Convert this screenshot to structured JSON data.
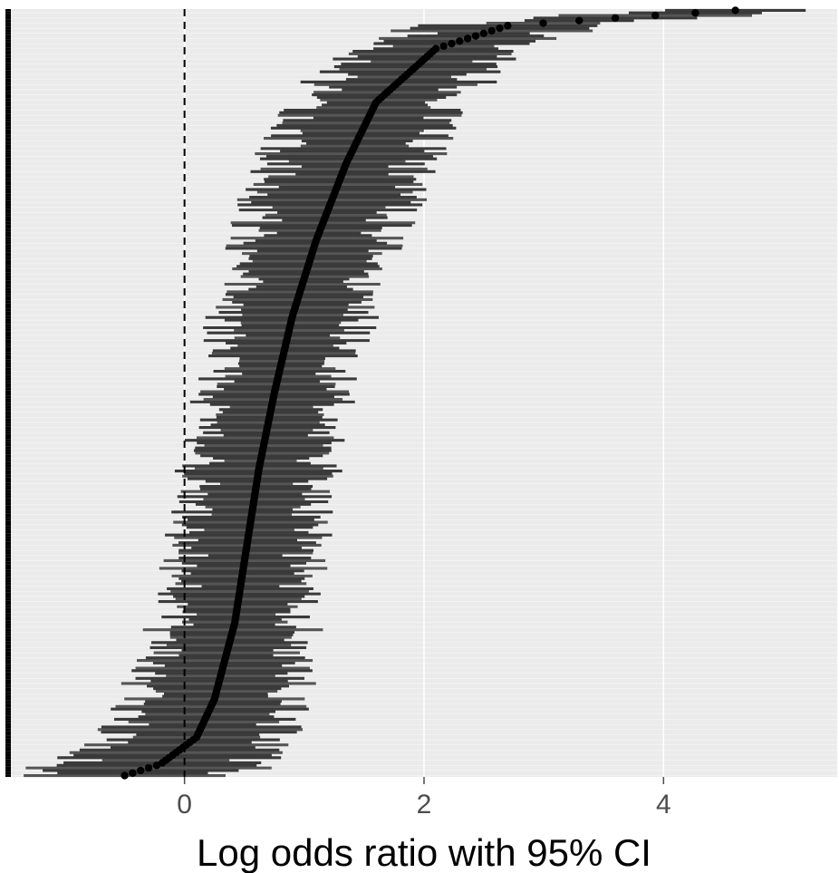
{
  "chart_data": {
    "type": "forest",
    "title": "",
    "xlabel": "Log odds ratio with 95% CI",
    "ylabel": "",
    "xlim": [
      -1.45,
      5.45
    ],
    "xticks": [
      0,
      2,
      4
    ],
    "xtick_labels": [
      "0",
      "2",
      "4"
    ],
    "reference_line": {
      "x": 0,
      "style": "dashed"
    },
    "grid": true,
    "n_studies": 300,
    "sort": "ascending estimate, smallest at bottom",
    "estimate_quantiles": [
      {
        "q": 0.0,
        "est": -0.5
      },
      {
        "q": 0.015,
        "est": -0.2
      },
      {
        "q": 0.05,
        "est": 0.1
      },
      {
        "q": 0.1,
        "est": 0.25
      },
      {
        "q": 0.2,
        "est": 0.42
      },
      {
        "q": 0.3,
        "est": 0.52
      },
      {
        "q": 0.4,
        "est": 0.62
      },
      {
        "q": 0.5,
        "est": 0.75
      },
      {
        "q": 0.6,
        "est": 0.9
      },
      {
        "q": 0.7,
        "est": 1.1
      },
      {
        "q": 0.8,
        "est": 1.35
      },
      {
        "q": 0.88,
        "est": 1.6
      },
      {
        "q": 0.95,
        "est": 2.1
      },
      {
        "q": 0.98,
        "est": 2.7
      },
      {
        "q": 0.99,
        "est": 3.6
      },
      {
        "q": 1.0,
        "est": 4.6
      }
    ],
    "ci_halfwidth_quantiles": [
      {
        "q": 0.0,
        "hw": 0.75
      },
      {
        "q": 0.1,
        "hw": 0.6
      },
      {
        "q": 0.3,
        "hw": 0.5
      },
      {
        "q": 0.5,
        "hw": 0.5
      },
      {
        "q": 0.7,
        "hw": 0.55
      },
      {
        "q": 0.9,
        "hw": 0.62
      },
      {
        "q": 1.0,
        "hw": 0.6
      }
    ],
    "colors": {
      "panel_background": "#ebebeb",
      "grid": "#ffffff",
      "ci_bar": "#3a3a3a",
      "ci_bar_alt": "#555555",
      "point": "#000000",
      "reference_line": "#000000",
      "tick_label": "#4d4d4d",
      "axis_title": "#000000"
    }
  }
}
